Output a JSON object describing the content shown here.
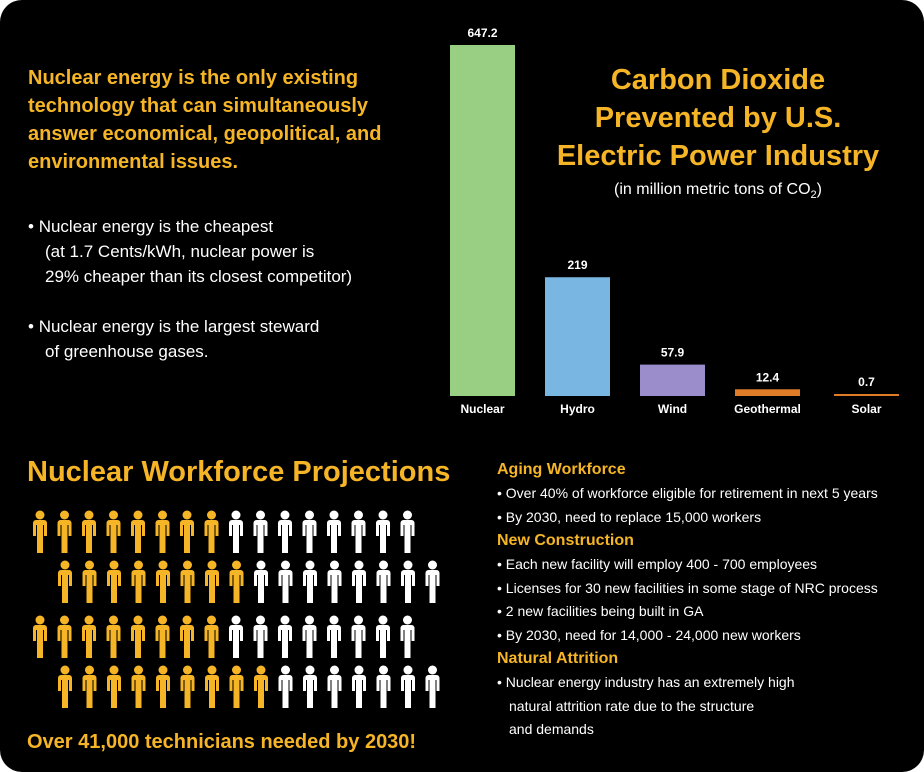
{
  "intro": {
    "heading": "Nuclear energy is the only existing\ntechnology that can simultaneously\nanswer economical, geopolitical, and\nenvironmental issues.",
    "bullets": [
      [
        "Nuclear energy is the cheapest",
        "(at 1.7 Cents/kWh, nuclear power is",
        "29% cheaper than its closest competitor)"
      ],
      [
        "Nuclear energy is the largest steward",
        "of greenhouse gases."
      ]
    ]
  },
  "chart_data": {
    "type": "bar",
    "title": "Carbon Dioxide\nPrevented by U.S.\nElectric Power Industry",
    "subtitle": {
      "text": "(in million metric tons of CO",
      "subscript": "2",
      "end": ")"
    },
    "categories": [
      "Nuclear",
      "Hydro",
      "Wind",
      "Geothermal",
      "Solar"
    ],
    "values": [
      647.2,
      219,
      57.9,
      12.4,
      0.7
    ],
    "colors": [
      "#98cf82",
      "#7ab6e2",
      "#9b8ccc",
      "#e07b28",
      "#e07b28"
    ]
  },
  "workforce": {
    "title": "Nuclear Workforce Projections",
    "footer": "Over 41,000 technicians needed by 2030!",
    "sections": [
      {
        "heading": "Aging Workforce",
        "items": [
          [
            "Over 40% of workforce eligible for retirement in next 5 years"
          ],
          [
            "By 2030, need to replace 15,000 workers"
          ]
        ]
      },
      {
        "heading": "New Construction",
        "items": [
          [
            "Each new facility will employ 400 - 700 employees"
          ],
          [
            "Licenses for 30 new facilities in some stage of NRC process"
          ],
          [
            "2 new facilities being built in GA"
          ],
          [
            "By 2030, need for 14,000 - 24,000 new workers"
          ]
        ]
      },
      {
        "heading": "Natural Attrition",
        "items": [
          [
            "Nuclear energy industry has an extremely high",
            "natural attrition rate due to the structure",
            "and demands"
          ]
        ]
      }
    ]
  }
}
